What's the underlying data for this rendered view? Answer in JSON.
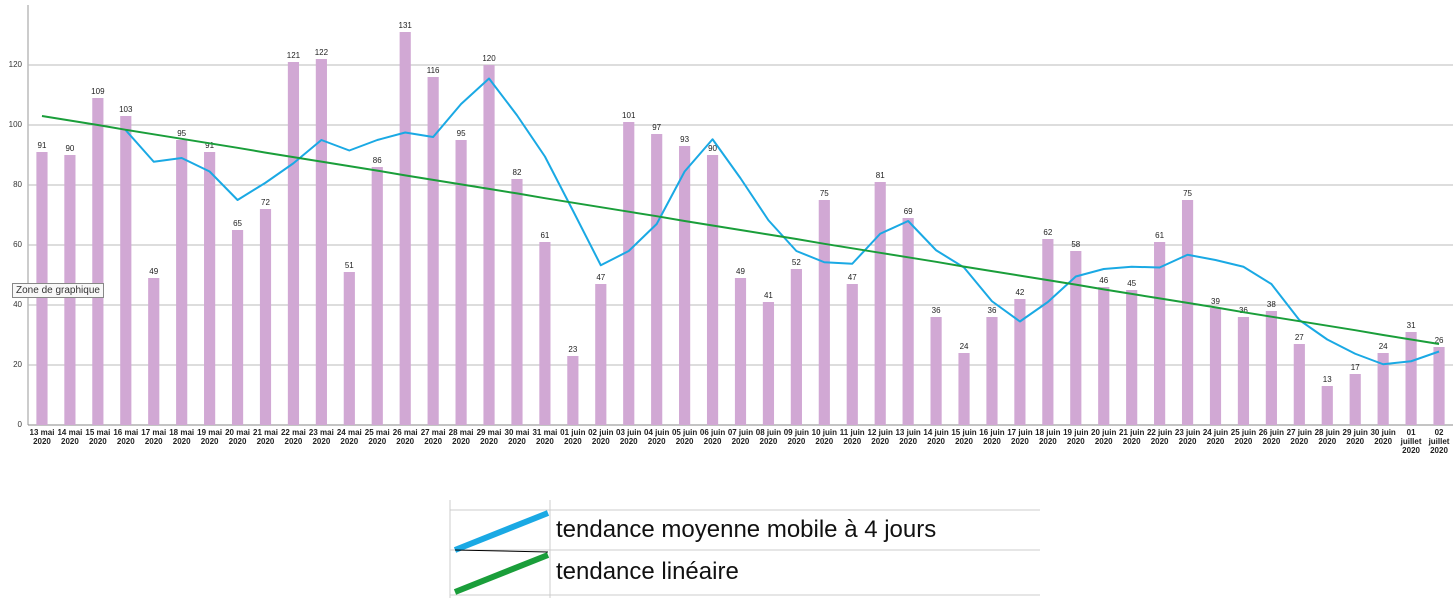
{
  "chart_data": {
    "type": "bar",
    "tooltip": "Zone de graphique",
    "categories": [
      "13 mai 2020",
      "14 mai 2020",
      "15 mai 2020",
      "16 mai 2020",
      "17 mai 2020",
      "18 mai 2020",
      "19 mai 2020",
      "20 mai 2020",
      "21 mai 2020",
      "22 mai 2020",
      "23 mai 2020",
      "24 mai 2020",
      "25 mai 2020",
      "26 mai 2020",
      "27 mai 2020",
      "28 mai 2020",
      "29 mai 2020",
      "30 mai 2020",
      "31 mai 2020",
      "01 juin 2020",
      "02 juin 2020",
      "03 juin 2020",
      "04 juin 2020",
      "05 juin 2020",
      "06 juin 2020",
      "07 juin 2020",
      "08 juin 2020",
      "09 juin 2020",
      "10 juin 2020",
      "11 juin 2020",
      "12 juin 2020",
      "13 juin 2020",
      "14 juin 2020",
      "15 juin 2020",
      "16 juin 2020",
      "17 juin 2020",
      "18 juin 2020",
      "19 juin 2020",
      "20 juin 2020",
      "21 juin 2020",
      "22 juin 2020",
      "23 juin 2020",
      "24 juin 2020",
      "25 juin 2020",
      "26 juin 2020",
      "27 juin 2020",
      "28 juin 2020",
      "29 juin 2020",
      "30 juin 2020",
      "01 juillet 2020",
      "02 juillet 2020"
    ],
    "values": [
      91,
      90,
      109,
      103,
      49,
      95,
      91,
      65,
      72,
      121,
      122,
      51,
      86,
      131,
      116,
      95,
      120,
      82,
      61,
      23,
      47,
      101,
      97,
      93,
      90,
      49,
      41,
      52,
      75,
      47,
      81,
      69,
      36,
      24,
      36,
      42,
      62,
      58,
      46,
      45,
      61,
      75,
      39,
      36,
      38,
      27,
      13,
      17,
      24,
      31,
      26
    ],
    "color": "#d1a8d4",
    "series": [
      {
        "name": "tendance moyenne mobile à 4 jours",
        "color": "#1aa9e4",
        "values": [
          null,
          null,
          null,
          98.25,
          87.75,
          89,
          84.5,
          75,
          80.75,
          87.25,
          95,
          91.5,
          95,
          97.5,
          96,
          107,
          115.5,
          103.25,
          89.5,
          71.5,
          53.25,
          58,
          67,
          84.5,
          95.25,
          82.25,
          68.25,
          58,
          54.25,
          53.75,
          63.75,
          68,
          58.25,
          52.5,
          41.25,
          34.5,
          41,
          49.5,
          52,
          52.75,
          52.5,
          56.75,
          55,
          52.75,
          47,
          35,
          28.5,
          23.75,
          20.25,
          21.25,
          24.5
        ]
      },
      {
        "name": "tendance linéaire",
        "color": "#1a9e3a",
        "values": [
          103,
          101.5,
          100,
          98.4,
          96.9,
          95.4,
          93.9,
          92.4,
          90.8,
          89.3,
          87.8,
          86.3,
          84.8,
          83.2,
          81.7,
          80.2,
          78.7,
          77.2,
          75.6,
          74.1,
          72.6,
          71.1,
          69.6,
          68,
          66.5,
          65,
          63.5,
          62,
          60.4,
          58.9,
          57.4,
          55.9,
          54.4,
          52.8,
          51.3,
          49.8,
          48.3,
          46.8,
          45.2,
          43.7,
          42.2,
          40.7,
          39.2,
          37.6,
          36.1,
          34.6,
          33.1,
          31.6,
          30,
          28.5,
          27
        ]
      }
    ],
    "ylim": [
      0,
      140
    ],
    "yticks": [
      0,
      20,
      40,
      60,
      80,
      100,
      120
    ],
    "grid": true
  }
}
